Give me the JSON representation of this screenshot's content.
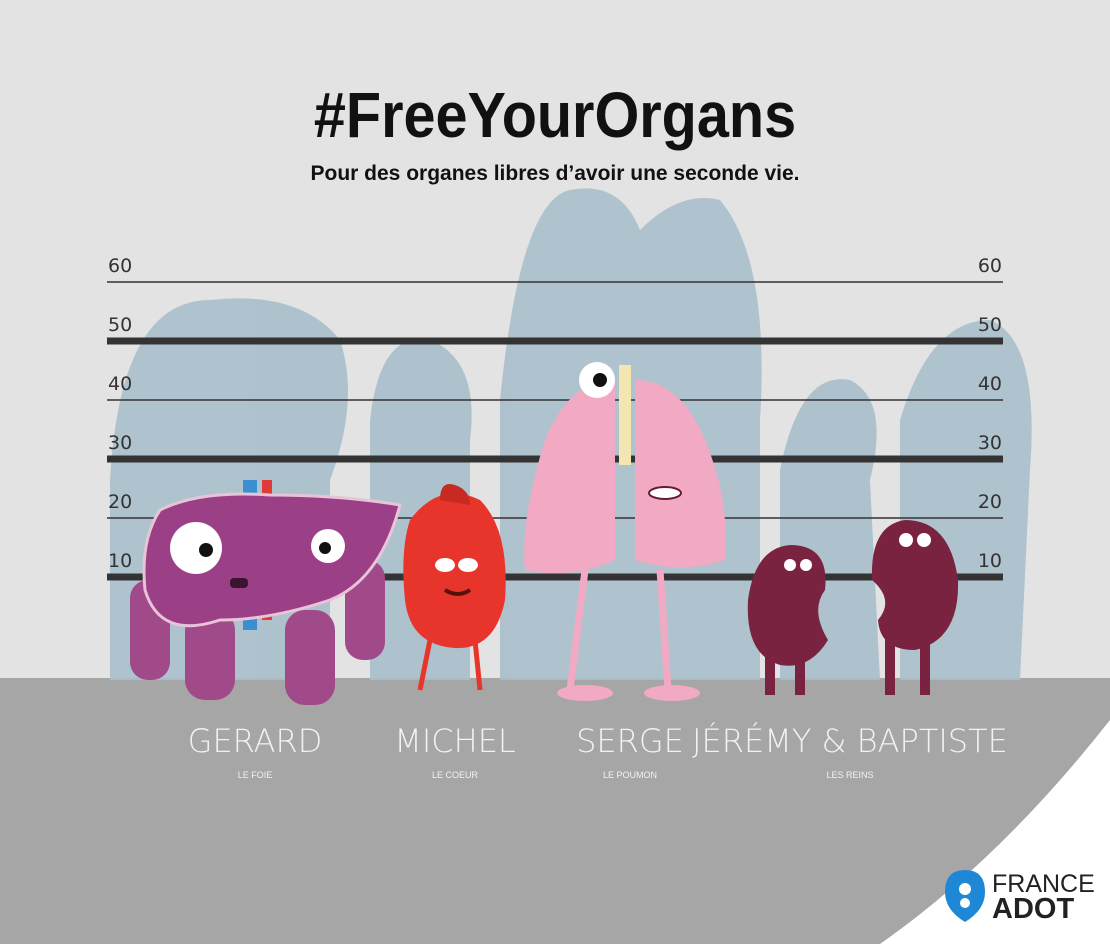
{
  "header": {
    "title": "#FreeYourOrgans",
    "subtitle": "Pour des organes libres d’avoir une seconde vie."
  },
  "height_scale": {
    "marks": [
      60,
      50,
      40,
      30,
      20,
      10
    ]
  },
  "characters": [
    {
      "name": "GERARD",
      "organ": "LE FOIE"
    },
    {
      "name": "MICHEL",
      "organ": "LE COEUR"
    },
    {
      "name": "SERGE",
      "organ": "LE POUMON"
    },
    {
      "name": "JÉRÉMY & BAPTISTE",
      "organ": "LES REINS"
    }
  ],
  "logo": {
    "line1": "FRANCE",
    "line2": "ADOT"
  }
}
